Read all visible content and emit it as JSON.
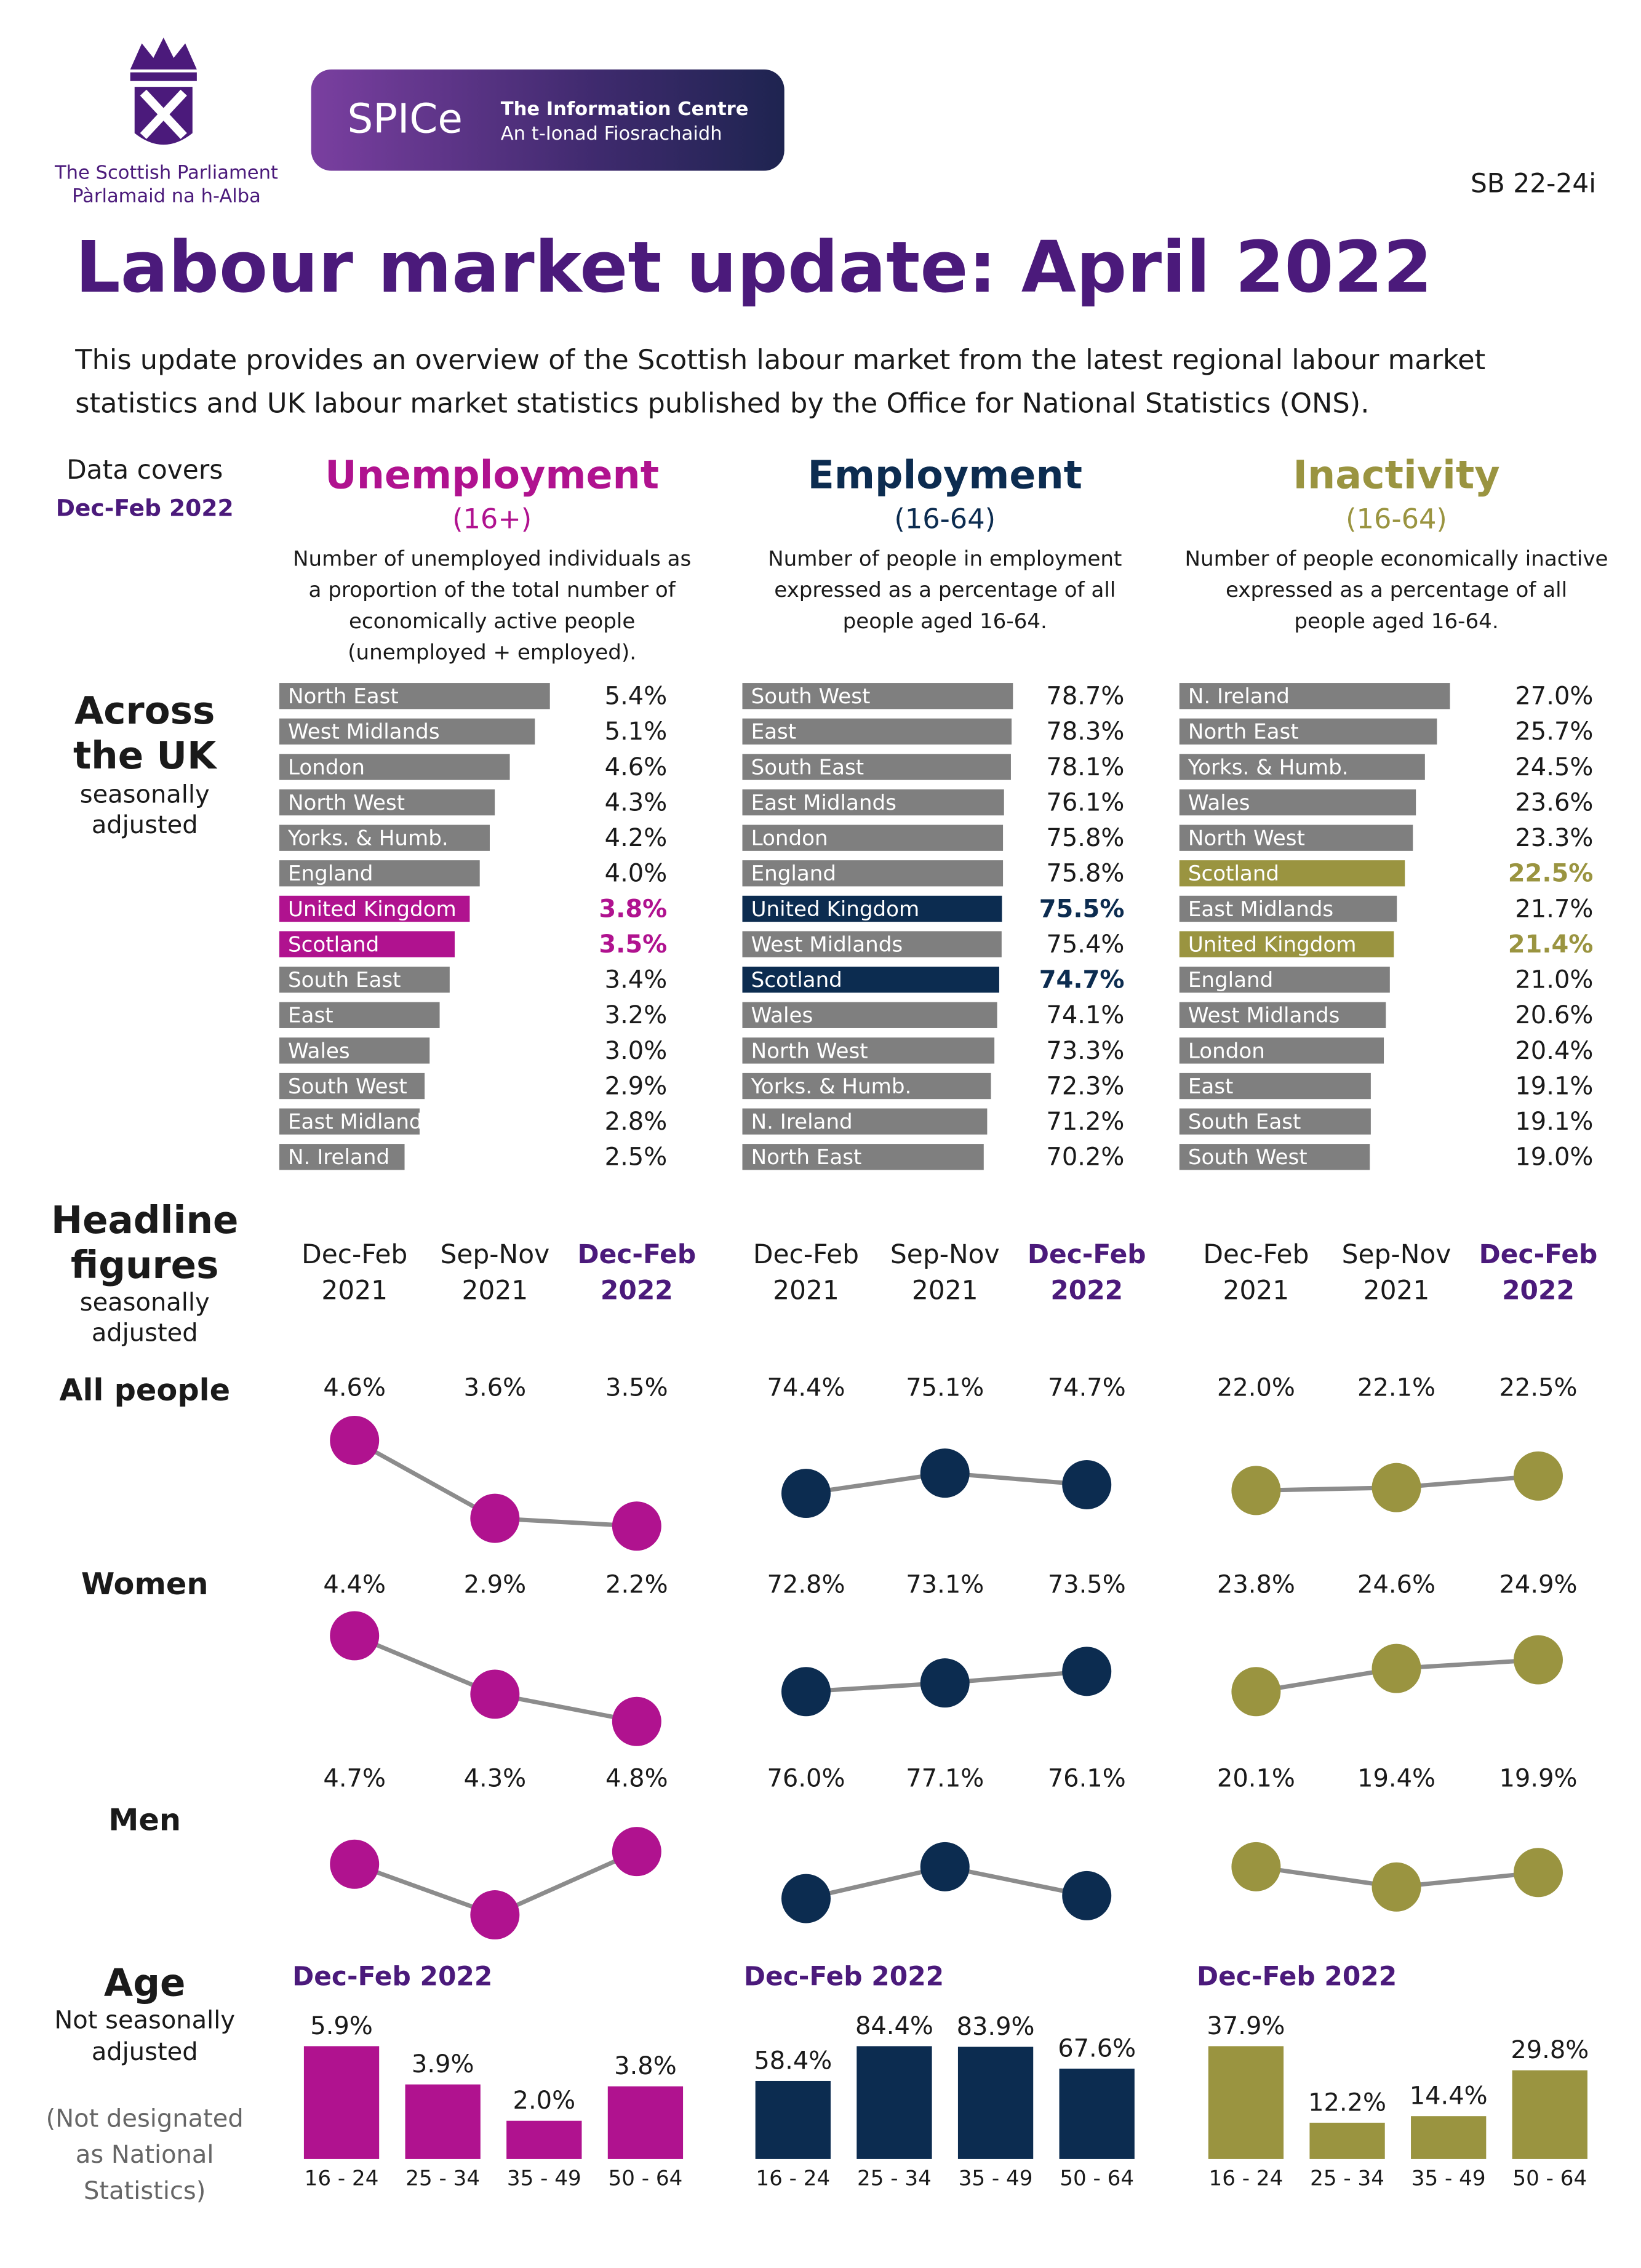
{
  "header": {
    "org_name": [
      "The Scottish Parliament",
      "Pàrlamaid na h-Alba"
    ],
    "logo_text": "SPICe",
    "logo_lines": [
      "The Information Centre",
      "An t-Ionad Fiosrachaidh"
    ],
    "reference": "SB 22-24i",
    "title": "Labour market update: April 2022",
    "intro": [
      "This update provides an overview of the Scottish labour market from the latest regional labour market",
      "statistics and UK labour market statistics published by the Office for National Statistics (ONS)."
    ]
  },
  "coverage": {
    "label": "Data covers",
    "period": "Dec-Feb 2022"
  },
  "rows": {
    "across": {
      "title": [
        "Across",
        "the UK"
      ],
      "note": [
        "seasonally",
        "adjusted"
      ]
    },
    "headline": {
      "title": [
        "Headline",
        "figures"
      ],
      "note": [
        "seasonally",
        "adjusted"
      ]
    },
    "groups": [
      "All people",
      "Women",
      "Men"
    ],
    "age": {
      "title": "Age",
      "note": [
        "Not seasonally",
        "adjusted"
      ],
      "caveat": [
        "(Not designated",
        "as National",
        "Statistics)"
      ]
    }
  },
  "sections": [
    {
      "name": "Unemployment",
      "range": "(16+)",
      "color": "#b0128f",
      "description": [
        "Number of unemployed individuals as",
        "a proportion of the total number of",
        "economically active people",
        "(unemployed + employed)."
      ]
    },
    {
      "name": "Employment",
      "range": "(16-64)",
      "color": "#0c2c50",
      "description": [
        "Number of people in employment",
        "expressed as a percentage of all",
        "people aged 16-64."
      ]
    },
    {
      "name": "Inactivity",
      "range": "(16-64)",
      "color": "#9a9440",
      "description": [
        "Number of people economically inactive",
        "expressed as a percentage of all",
        "people aged 16-64."
      ]
    }
  ],
  "chart_data": [
    {
      "type": "hbar",
      "color": "#7f7f7f",
      "highlight_color": "#b0128f",
      "highlight": [
        6,
        7
      ],
      "xlim": [
        0,
        5.4
      ],
      "categories": [
        "North East",
        "West Midlands",
        "London",
        "North West",
        "Yorks. & Humb.",
        "England",
        "United Kingdom",
        "Scotland",
        "South East",
        "East",
        "Wales",
        "South West",
        "East Midland",
        "N. Ireland"
      ],
      "values": [
        5.4,
        5.1,
        4.6,
        4.3,
        4.2,
        4.0,
        3.8,
        3.5,
        3.4,
        3.2,
        3.0,
        2.9,
        2.8,
        2.5
      ],
      "value_labels": [
        "5.4%",
        "5.1%",
        "4.6%",
        "4.3%",
        "4.2%",
        "4.0%",
        "3.8%",
        "3.5%",
        "3.4%",
        "3.2%",
        "3.0%",
        "2.9%",
        "2.8%",
        "2.5%"
      ]
    },
    {
      "type": "hbar",
      "color": "#7f7f7f",
      "highlight_color": "#0c2c50",
      "highlight": [
        6,
        8
      ],
      "xlim": [
        0,
        78.7
      ],
      "categories": [
        "South West",
        "East",
        "South East",
        "East Midlands",
        "London",
        "England",
        "United Kingdom",
        "West Midlands",
        "Scotland",
        "Wales",
        "North West",
        "Yorks. & Humb.",
        "N. Ireland",
        "North East"
      ],
      "values": [
        78.7,
        78.3,
        78.1,
        76.1,
        75.8,
        75.8,
        75.5,
        75.4,
        74.7,
        74.1,
        73.3,
        72.3,
        71.2,
        70.2
      ],
      "value_labels": [
        "78.7%",
        "78.3%",
        "78.1%",
        "76.1%",
        "75.8%",
        "75.8%",
        "75.5%",
        "75.4%",
        "74.7%",
        "74.1%",
        "73.3%",
        "72.3%",
        "71.2%",
        "70.2%"
      ]
    },
    {
      "type": "hbar",
      "color": "#7f7f7f",
      "highlight_color": "#9a9440",
      "highlight": [
        5,
        7
      ],
      "xlim": [
        0,
        27.0
      ],
      "categories": [
        "N. Ireland",
        "North East",
        "Yorks. & Humb.",
        "Wales",
        "North West",
        "Scotland",
        "East Midlands",
        "United Kingdom",
        "England",
        "West Midlands",
        "London",
        "East",
        "South East",
        "South West"
      ],
      "values": [
        27.0,
        25.7,
        24.5,
        23.6,
        23.3,
        22.5,
        21.7,
        21.4,
        21.0,
        20.6,
        20.4,
        19.1,
        19.1,
        19.0
      ],
      "value_labels": [
        "27.0%",
        "25.7%",
        "24.5%",
        "23.6%",
        "23.3%",
        "22.5%",
        "21.7%",
        "21.4%",
        "21.0%",
        "20.6%",
        "20.4%",
        "19.1%",
        "19.1%",
        "19.0%"
      ]
    },
    {
      "type": "line",
      "color": "#b0128f",
      "highlight_category": 2,
      "categories": [
        [
          "Dec-Feb",
          "2021"
        ],
        [
          "Sep-Nov",
          "2021"
        ],
        [
          "Dec-Feb",
          "2022"
        ]
      ],
      "series": [
        {
          "values": [
            4.6,
            3.6,
            3.5
          ],
          "value_labels": [
            "4.6%",
            "3.6%",
            "3.5%"
          ],
          "ylim": [
            3.4,
            4.7
          ]
        },
        {
          "values": [
            4.4,
            2.9,
            2.2
          ],
          "value_labels": [
            "4.4%",
            "2.9%",
            "2.2%"
          ],
          "ylim": [
            2.0,
            4.6
          ]
        },
        {
          "values": [
            4.7,
            4.3,
            4.8
          ],
          "value_labels": [
            "4.7%",
            "4.3%",
            "4.8%"
          ],
          "ylim": [
            4.2,
            5.0
          ]
        }
      ]
    },
    {
      "type": "line",
      "color": "#0c2c50",
      "highlight_category": 2,
      "categories": [
        [
          "Dec-Feb",
          "2021"
        ],
        [
          "Sep-Nov",
          "2021"
        ],
        [
          "Dec-Feb",
          "2022"
        ]
      ],
      "series": [
        {
          "values": [
            74.4,
            75.1,
            74.7
          ],
          "value_labels": [
            "74.4%",
            "75.1%",
            "74.7%"
          ],
          "ylim": [
            73.0,
            76.5
          ]
        },
        {
          "values": [
            72.8,
            73.1,
            73.5
          ],
          "value_labels": [
            "72.8%",
            "73.1%",
            "73.5%"
          ],
          "ylim": [
            71.5,
            75.0
          ]
        },
        {
          "values": [
            76.0,
            77.1,
            76.1
          ],
          "value_labels": [
            "76.0%",
            "77.1%",
            "76.1%"
          ],
          "ylim": [
            75.0,
            78.5
          ]
        }
      ]
    },
    {
      "type": "line",
      "color": "#9a9440",
      "highlight_category": 2,
      "categories": [
        [
          "Dec-Feb",
          "2021"
        ],
        [
          "Sep-Nov",
          "2021"
        ],
        [
          "Dec-Feb",
          "2022"
        ]
      ],
      "series": [
        {
          "values": [
            22.0,
            22.1,
            22.5
          ],
          "value_labels": [
            "22.0%",
            "22.1%",
            "22.5%"
          ],
          "ylim": [
            20.5,
            24.0
          ]
        },
        {
          "values": [
            23.8,
            24.6,
            24.9
          ],
          "value_labels": [
            "23.8%",
            "24.6%",
            "24.9%"
          ],
          "ylim": [
            22.5,
            26.0
          ]
        },
        {
          "values": [
            20.1,
            19.4,
            19.9
          ],
          "value_labels": [
            "20.1%",
            "19.4%",
            "19.9%"
          ],
          "ylim": [
            18.0,
            21.5
          ]
        }
      ]
    },
    {
      "type": "bar",
      "title": "Dec-Feb 2022",
      "color": "#b0128f",
      "ylim": [
        0,
        5.9
      ],
      "categories": [
        "16 - 24",
        "25 - 34",
        "35 - 49",
        "50 - 64"
      ],
      "values": [
        5.9,
        3.9,
        2.0,
        3.8
      ],
      "value_labels": [
        "5.9%",
        "3.9%",
        "2.0%",
        "3.8%"
      ]
    },
    {
      "type": "bar",
      "title": "Dec-Feb 2022",
      "color": "#0c2c50",
      "ylim": [
        0,
        84.4
      ],
      "categories": [
        "16 - 24",
        "25 - 34",
        "35 - 49",
        "50 - 64"
      ],
      "values": [
        58.4,
        84.4,
        83.9,
        67.6
      ],
      "value_labels": [
        "58.4%",
        "84.4%",
        "83.9%",
        "67.6%"
      ]
    },
    {
      "type": "bar",
      "title": "Dec-Feb 2022",
      "color": "#9a9440",
      "ylim": [
        0,
        37.9
      ],
      "categories": [
        "16 - 24",
        "25 - 34",
        "35 - 49",
        "50 - 64"
      ],
      "values": [
        37.9,
        12.2,
        14.4,
        29.8
      ],
      "value_labels": [
        "37.9%",
        "12.2%",
        "14.4%",
        "29.8%"
      ]
    }
  ]
}
